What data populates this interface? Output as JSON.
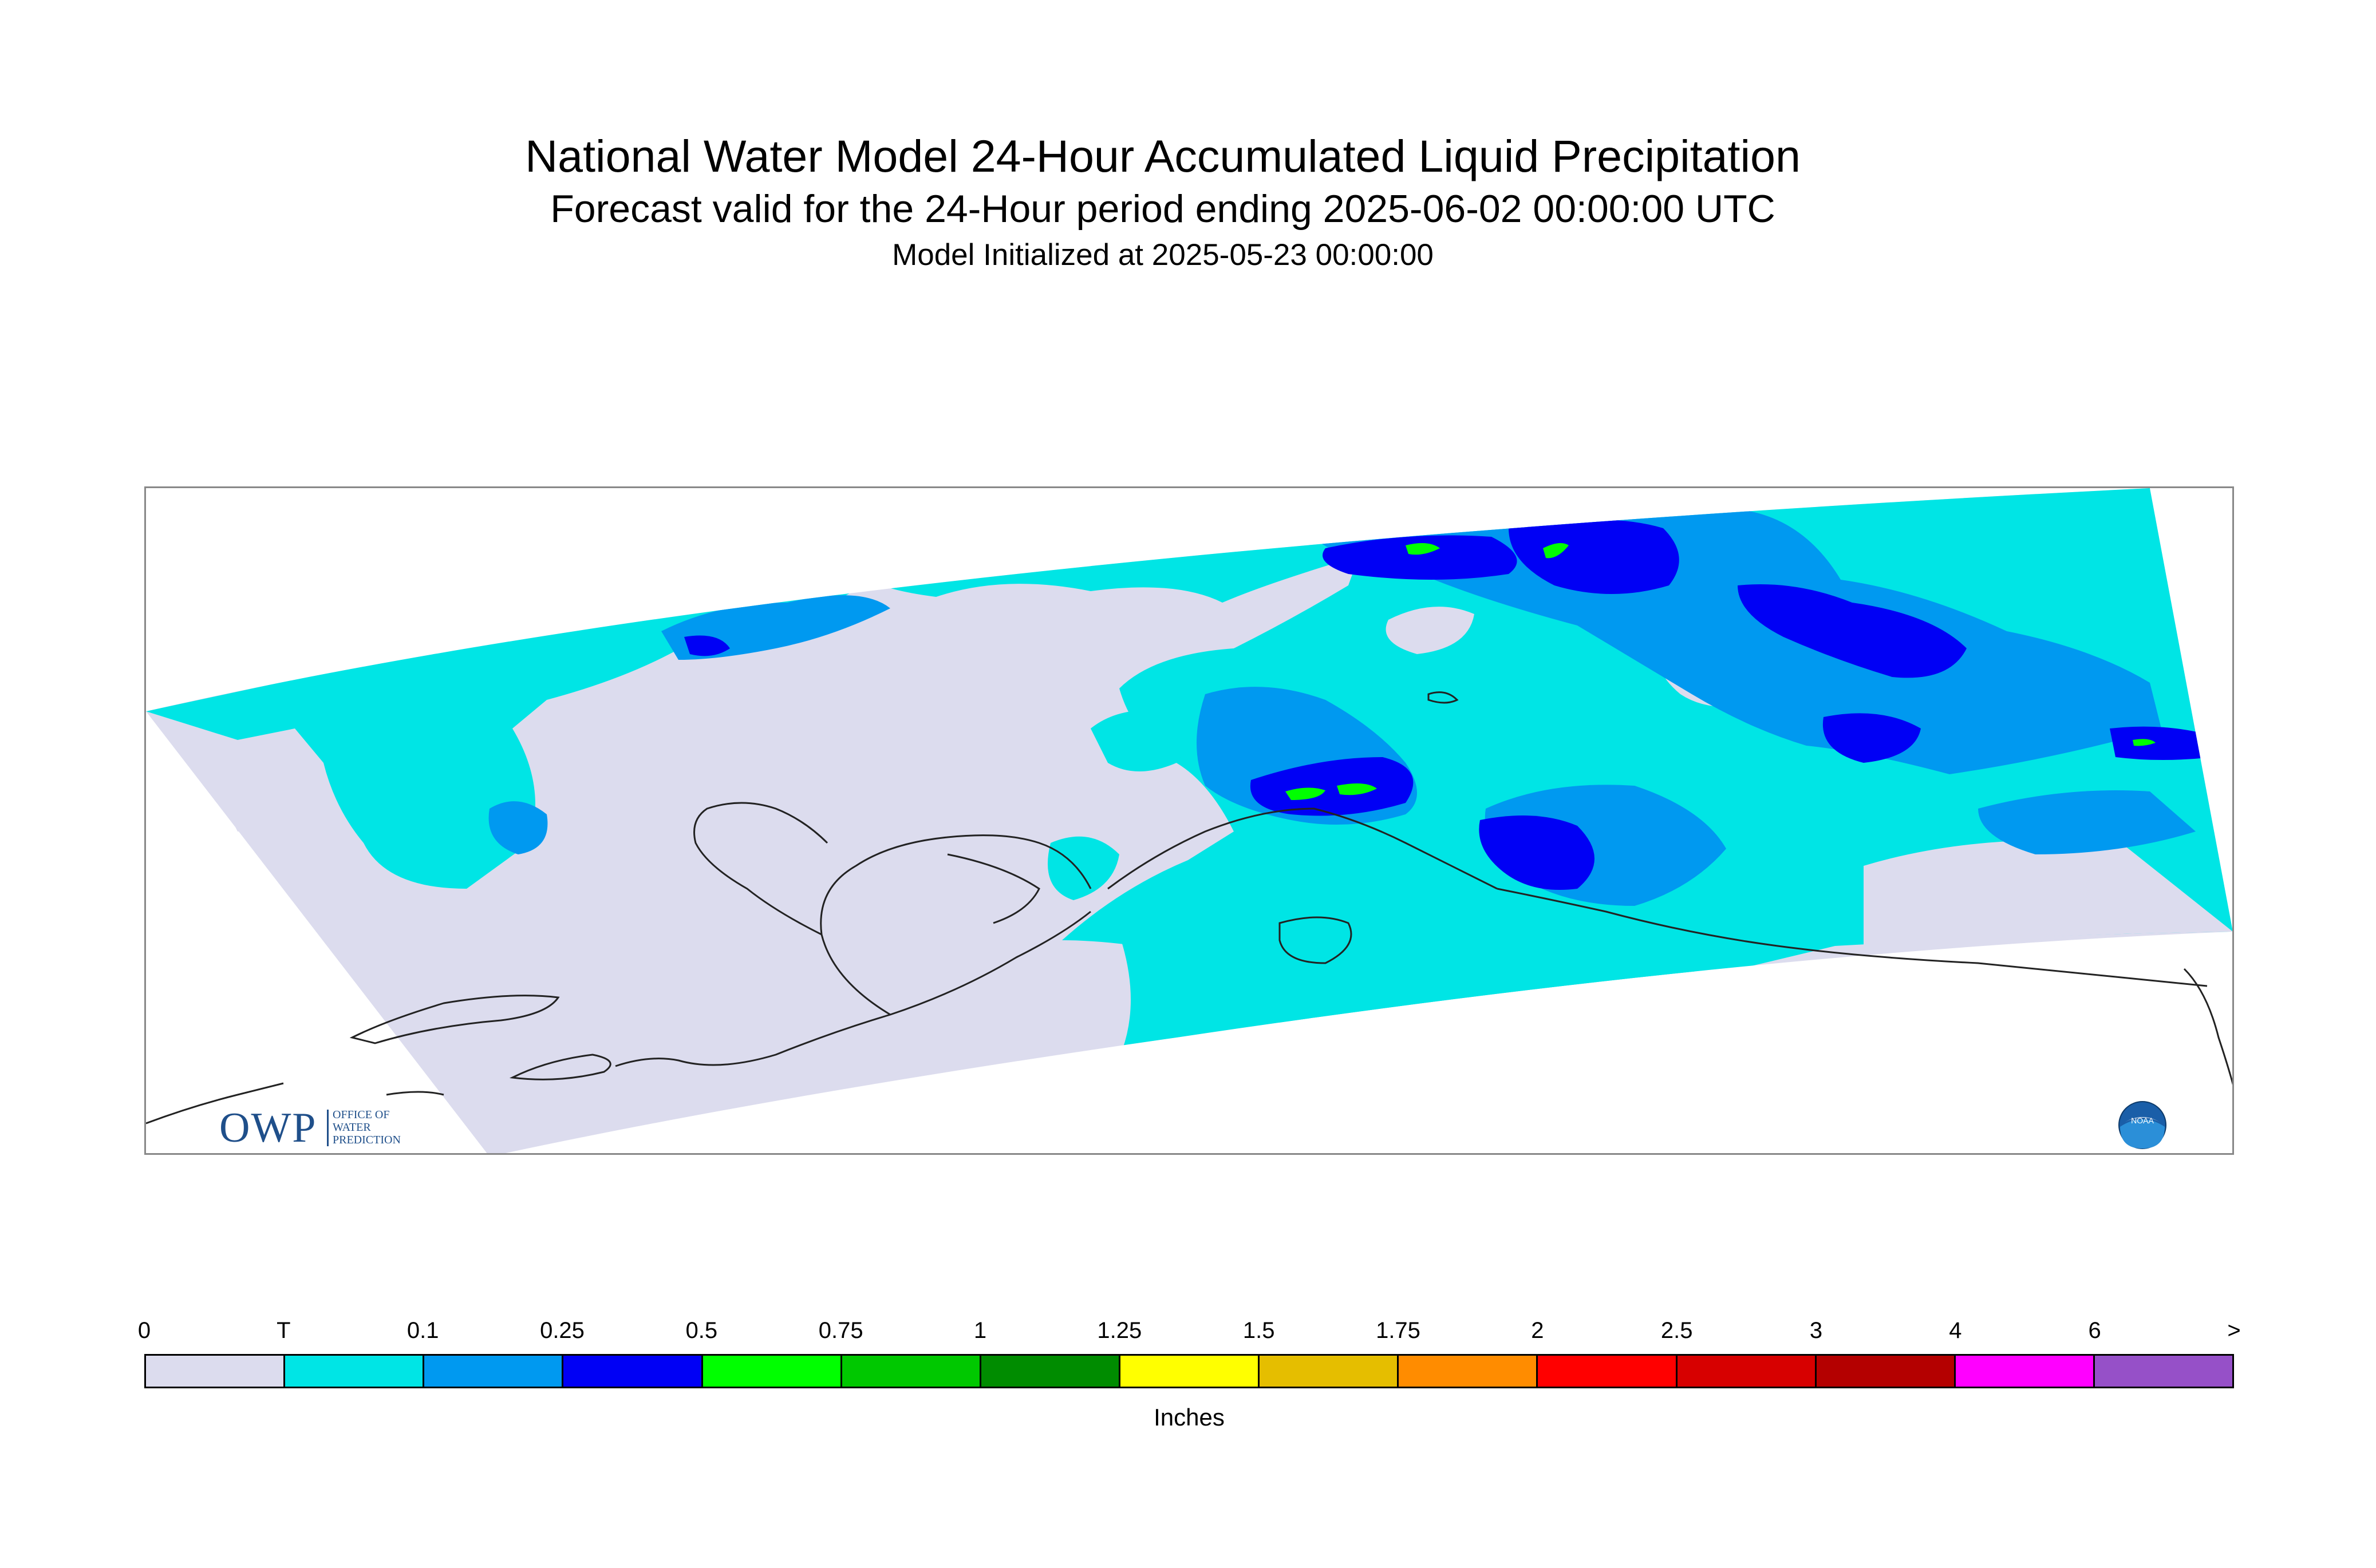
{
  "header": {
    "title": "National Water Model 24-Hour Accumulated Liquid Precipitation",
    "subtitle": "Forecast valid for the 24-Hour period ending 2025-06-02 00:00:00 UTC",
    "initialized": "Model Initialized at 2025-05-23 00:00:00"
  },
  "logos": {
    "owp": {
      "letters": "OWP",
      "line1": "OFFICE OF",
      "line2": "WATER",
      "line3": "PREDICTION"
    },
    "noaa": {
      "text": "NOAA"
    }
  },
  "legend": {
    "units": "Inches",
    "labels": [
      "0",
      "T",
      "0.1",
      "0.25",
      "0.5",
      "0.75",
      "1",
      "1.25",
      "1.5",
      "1.75",
      "2",
      "2.5",
      "3",
      "4",
      "6",
      ">"
    ],
    "colors": [
      "#dcdcee",
      "#00e5e5",
      "#0099f0",
      "#0000f5",
      "#00ff00",
      "#00c800",
      "#008c00",
      "#ffff00",
      "#e5be00",
      "#ff8c00",
      "#ff0000",
      "#d70000",
      "#b40000",
      "#ff00ff",
      "#9650c8"
    ]
  },
  "map": {
    "colors": {
      "zero": "#dcdcee",
      "trace": "#00e5e5",
      "tenth": "#0099f0",
      "quarter": "#0000f5",
      "half": "#00ff00",
      "coast": "#222222",
      "frame": "#888888"
    }
  }
}
